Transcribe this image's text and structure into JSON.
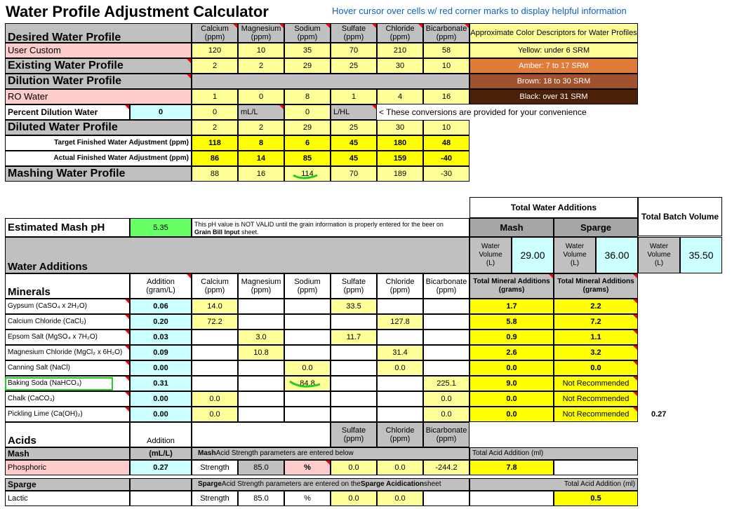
{
  "title": "Water Profile Adjustment Calculator",
  "hint": "Hover cursor over cells w/ red corner marks to display helpful information",
  "ion_headers": [
    "Calcium\n(ppm)",
    "Magnesium\n(ppm)",
    "Sodium\n(ppm)",
    "Sulfate\n(ppm)",
    "Chloride\n(ppm)",
    "Bicarbonate\n(ppm)"
  ],
  "color_header": "Approximate Color Descriptors for Water Profiles",
  "colors": [
    "Yellow: under 6 SRM",
    "Amber: 7 to 17 SRM",
    "Brown: 18 to 30 SRM",
    "Black: over 31 SRM"
  ],
  "desired": {
    "label": "Desired Water Profile",
    "name": "User Custom",
    "values": [
      "120",
      "10",
      "35",
      "70",
      "210",
      "58"
    ]
  },
  "existing": {
    "label": "Existing Water Profile",
    "values": [
      "2",
      "2",
      "29",
      "25",
      "30",
      "10"
    ]
  },
  "dilution": {
    "label": "Dilution Water Profile",
    "name": "RO Water",
    "values": [
      "1",
      "0",
      "8",
      "1",
      "4",
      "16"
    ]
  },
  "percent_dilution": {
    "label": "Percent Dilution Water",
    "value": "0",
    "mg_value": "0",
    "mg_unit": "mL/L",
    "l_value": "0",
    "l_unit": "L/HL",
    "note": "< These conversions are provided for your convenience"
  },
  "diluted": {
    "label": "Diluted Water Profile",
    "values": [
      "2",
      "2",
      "29",
      "25",
      "30",
      "10"
    ]
  },
  "target": {
    "label": "Target Finished Water Adjustment (ppm)",
    "values": [
      "118",
      "8",
      "6",
      "45",
      "180",
      "48"
    ]
  },
  "actual": {
    "label": "Actual Finished Water Adjustment (ppm)",
    "values": [
      "86",
      "14",
      "85",
      "45",
      "159",
      "-40"
    ]
  },
  "mashing": {
    "label": "Mashing Water Profile",
    "values": [
      "88",
      "16",
      "114",
      "70",
      "189",
      "-30"
    ]
  },
  "total_water_additions": "Total Water Additions",
  "total_batch_volume": "Total Batch Volume",
  "mash_label": "Mash",
  "sparge_label": "Sparge",
  "water_volume_label": "Water\nVolume\n(L)",
  "mash_volume": "29.00",
  "sparge_volume": "36.00",
  "batch_volume": "35.50",
  "est_ph": {
    "label": "Estimated Mash pH",
    "value": "5.35",
    "note_1": "This pH value is NOT VALID until the grain information is properly entered for the beer on",
    "note_2_bold": "Grain Bill Input",
    "note_2_rest": " sheet."
  },
  "water_additions_label": "Water Additions",
  "minerals_label": "Minerals",
  "addition_header": "Addition\n(gram/L)",
  "total_mineral_header": "Total Mineral Additions\n(grams)",
  "minerals": [
    {
      "name": "Gypsum (CaSO₄ x 2H₂O)",
      "add": "0.06",
      "vals": [
        "14.0",
        "",
        "",
        "33.5",
        "",
        ""
      ],
      "mash": "1.7",
      "sparge": "2.2"
    },
    {
      "name": "Calcium Chloride (CaCl₂)",
      "add": "0.20",
      "vals": [
        "72.2",
        "",
        "",
        "",
        "127.8",
        ""
      ],
      "mash": "5.8",
      "sparge": "7.2"
    },
    {
      "name": "Epsom Salt (MgSO₄ x 7H₂O)",
      "add": "0.03",
      "vals": [
        "",
        "3.0",
        "",
        "11.7",
        "",
        ""
      ],
      "mash": "0.9",
      "sparge": "1.1"
    },
    {
      "name": "Magnesium Chloride (MgCl₂ x 6H₂O)",
      "add": "0.09",
      "vals": [
        "",
        "10.8",
        "",
        "",
        "31.4",
        ""
      ],
      "mash": "2.6",
      "sparge": "3.2"
    },
    {
      "name": "Canning Salt (NaCl)",
      "add": "0.00",
      "vals": [
        "",
        "",
        "0.0",
        "",
        "0.0",
        ""
      ],
      "mash": "0.0",
      "sparge": "0.0"
    },
    {
      "name": "Baking Soda (NaHCO₃)",
      "add": "0.31",
      "vals": [
        "",
        "",
        "84.8",
        "",
        "",
        "225.1"
      ],
      "mash": "9.0",
      "sparge": "Not Recommended"
    },
    {
      "name": "Chalk (CaCO₃)",
      "add": "0.00",
      "vals": [
        "0.0",
        "",
        "",
        "",
        "",
        "0.0"
      ],
      "mash": "0.0",
      "sparge": "Not Recommended"
    },
    {
      "name": "Pickling Lime (Ca(OH)₂)",
      "add": "0.00",
      "vals": [
        "0.0",
        "",
        "",
        "",
        "",
        "0.0"
      ],
      "mash": "0.0",
      "sparge": "Not Recommended"
    }
  ],
  "extra_value": "0.27",
  "acids_label": "Acids",
  "acid_addition_header": "Addition",
  "acid_unit": "(mL/L)",
  "acid_ion_headers": [
    "Sulfate\n(ppm)",
    "Chloride\n(ppm)",
    "Bicarbonate\n(ppm)"
  ],
  "mash_acid": {
    "section": "Mash",
    "note_bold": "Mash",
    "note_rest": " Acid Strength parameters are entered below",
    "total_label": "Total Acid Addition (ml)",
    "name": "Phosphoric",
    "add": "0.27",
    "strength_label": "Strength",
    "strength": "85.0",
    "unit": "%",
    "sulfate": "0.0",
    "chloride": "0.0",
    "bicarb": "-244.2",
    "total": "7.8"
  },
  "sparge_acid": {
    "section": "Sparge",
    "note_bold1": "Sparge",
    "note_mid": " Acid Strength parameters are entered on the ",
    "note_bold2": "Sparge Acidication",
    "note_end": " sheet",
    "total_label": "Total Acid Addition (ml)",
    "name": "Lactic",
    "strength_label": "Strength",
    "strength": "85.0",
    "unit": "%",
    "sulfate": "0.0",
    "chloride": "0.0",
    "total": "0.5"
  }
}
